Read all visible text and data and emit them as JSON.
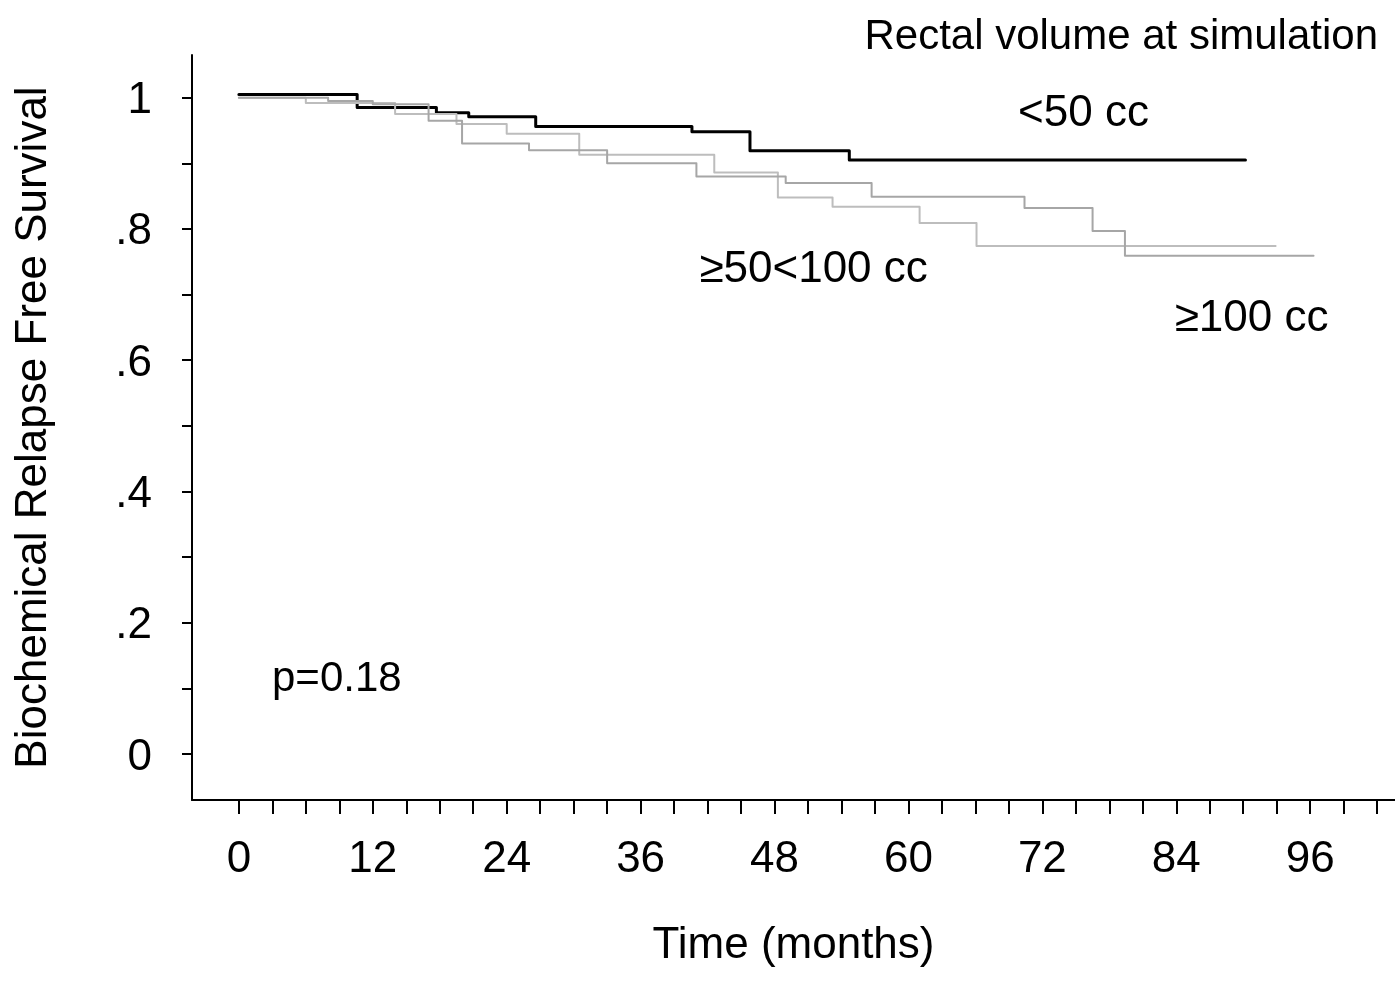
{
  "chart_data": {
    "type": "step",
    "title": "Rectal volume at simulation",
    "xlabel": "Time (months)",
    "ylabel": "Biochemical Relapse Free Survival",
    "annotations": [
      "p=0.18"
    ],
    "series": [
      {
        "name": "<50 cc",
        "color": "#000000",
        "x": [
          0,
          10.6,
          17.7,
          20.6,
          26.6,
          40.6,
          45.8,
          54.7,
          90.2
        ],
        "values": [
          1.005,
          0.985,
          0.977,
          0.971,
          0.956,
          0.948,
          0.919,
          0.905,
          0.905
        ]
      },
      {
        "name": "≥50<100 cc",
        "color": "#bdbdbd",
        "x": [
          0,
          6,
          14,
          19.5,
          24,
          30.5,
          42.6,
          48.3,
          53.2,
          61,
          66.1,
          92.9
        ],
        "values": [
          1.0,
          0.992,
          0.975,
          0.96,
          0.945,
          0.913,
          0.886,
          0.848,
          0.834,
          0.809,
          0.774,
          0.774
        ]
      },
      {
        "name": "≥100 cc",
        "color": "#a6a6a6",
        "x": [
          0,
          8,
          12,
          17,
          20,
          26,
          33,
          41,
          49,
          56.7,
          70.4,
          76.5,
          79.4,
          96.3
        ],
        "values": [
          1.0,
          0.995,
          0.99,
          0.965,
          0.93,
          0.92,
          0.9,
          0.88,
          0.87,
          0.849,
          0.832,
          0.797,
          0.759,
          0.759
        ]
      }
    ],
    "xlim": [
      -4.2,
      103.6
    ],
    "xticks": [
      0,
      {
        "value": 3,
        "label": null
      },
      {
        "value": 6,
        "label": null
      },
      {
        "value": 9,
        "label": null
      },
      12,
      {
        "value": 15,
        "label": null
      },
      {
        "value": 18,
        "label": null
      },
      {
        "value": 21,
        "label": null
      },
      24,
      {
        "value": 27,
        "label": null
      },
      {
        "value": 30,
        "label": null
      },
      {
        "value": 33,
        "label": null
      },
      36,
      {
        "value": 39,
        "label": null
      },
      {
        "value": 42,
        "label": null
      },
      {
        "value": 45,
        "label": null
      },
      48,
      {
        "value": 51,
        "label": null
      },
      {
        "value": 54,
        "label": null
      },
      {
        "value": 57,
        "label": null
      },
      60,
      {
        "value": 63,
        "label": null
      },
      {
        "value": 66,
        "label": null
      },
      {
        "value": 69,
        "label": null
      },
      72,
      {
        "value": 75,
        "label": null
      },
      {
        "value": 78,
        "label": null
      },
      {
        "value": 81,
        "label": null
      },
      84,
      {
        "value": 87,
        "label": null
      },
      {
        "value": 90,
        "label": null
      },
      {
        "value": 93,
        "label": null
      },
      96,
      {
        "value": 99,
        "label": null
      },
      {
        "value": 102,
        "label": null
      }
    ],
    "ylim": [
      -0.07,
      1.065
    ],
    "yticks": [
      0,
      {
        "value": 0.1,
        "label": null
      },
      {
        "value": 0.2,
        "label": ".2"
      },
      {
        "value": 0.3,
        "label": null
      },
      {
        "value": 0.4,
        "label": ".4"
      },
      {
        "value": 0.5,
        "label": null
      },
      {
        "value": 0.6,
        "label": ".6"
      },
      {
        "value": 0.7,
        "label": null
      },
      {
        "value": 0.8,
        "label": ".8"
      },
      {
        "value": 0.9,
        "label": null
      },
      1
    ],
    "grid": false,
    "legend": false,
    "marker": "none",
    "line_style": "solid"
  }
}
